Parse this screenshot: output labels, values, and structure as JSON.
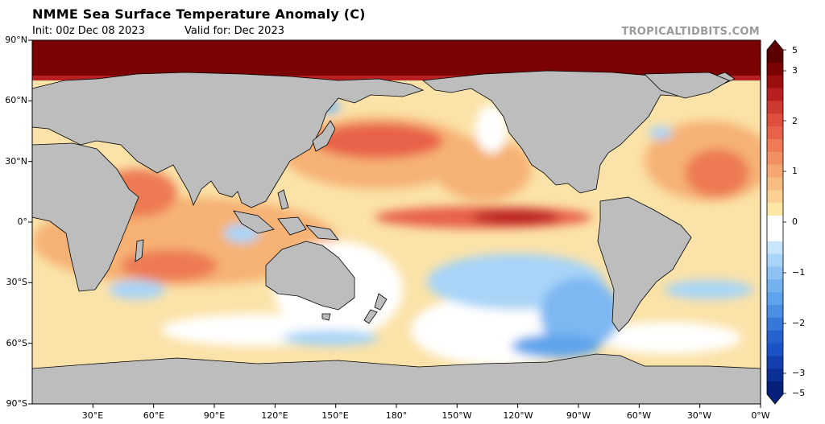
{
  "header": {
    "title": "NMME Sea Surface Temperature Anomaly (C)",
    "init": "Init: 00z Dec 08 2023",
    "valid": "Valid for: Dec 2023",
    "credit": "TROPICALTIDBITS.COM"
  },
  "lat_labels": [
    "90°N",
    "60°N",
    "30°N",
    "0°",
    "30°S",
    "60°S",
    "90°S"
  ],
  "lon_labels": [
    "30°E",
    "60°E",
    "90°E",
    "120°E",
    "150°E",
    "180°",
    "150°W",
    "120°W",
    "90°W",
    "60°W",
    "30°W",
    "0°W"
  ],
  "colorbar": {
    "tick_labels": [
      "5",
      "3",
      "2",
      "1",
      "0",
      "−1",
      "−2",
      "−3",
      "−5"
    ]
  },
  "colors": {
    "land": "#bdbdbd",
    "ocean_neutral": "#ffffff",
    "warm_light": "#fde6a6",
    "warm_mid": "#f7b477",
    "warm_strong": "#e8624a",
    "warm_extreme": "#7a0202",
    "cool_light": "#a8d4f7",
    "cool_mid": "#5ea4ec",
    "cool_strong": "#1b53c6"
  }
}
